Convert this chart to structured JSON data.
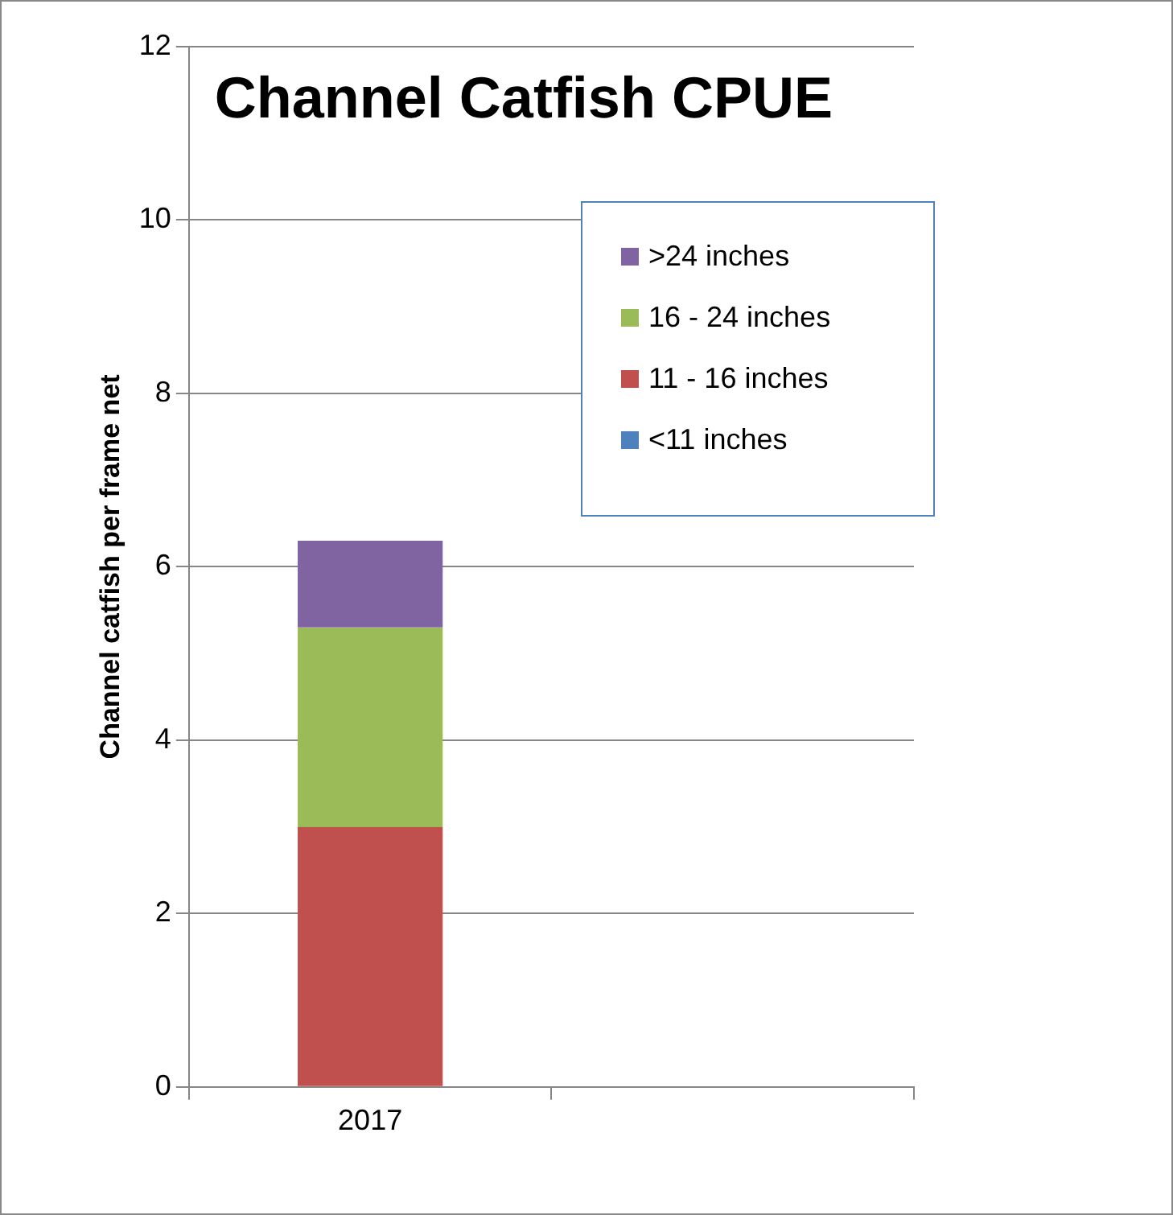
{
  "chart_data": {
    "type": "bar",
    "title": "Channel Catfish CPUE",
    "ylabel": "Channel catfish per frame net",
    "categories": [
      "2017",
      null
    ],
    "stacked": true,
    "series": [
      {
        "name": "<11 inches",
        "color": "#4f81bd",
        "values": [
          0,
          null
        ]
      },
      {
        "name": "11 - 16 inches",
        "color": "#c0504d",
        "values": [
          3.0,
          null
        ]
      },
      {
        "name": "16 - 24 inches",
        "color": "#9bbb59",
        "values": [
          2.3,
          null
        ]
      },
      {
        "name": ">24 inches",
        "color": "#8064a2",
        "values": [
          1.0,
          null
        ]
      }
    ],
    "ylim": [
      0,
      12
    ],
    "yticks": [
      0,
      2,
      4,
      6,
      8,
      10,
      12
    ],
    "grid": "y",
    "legend": "top right"
  }
}
